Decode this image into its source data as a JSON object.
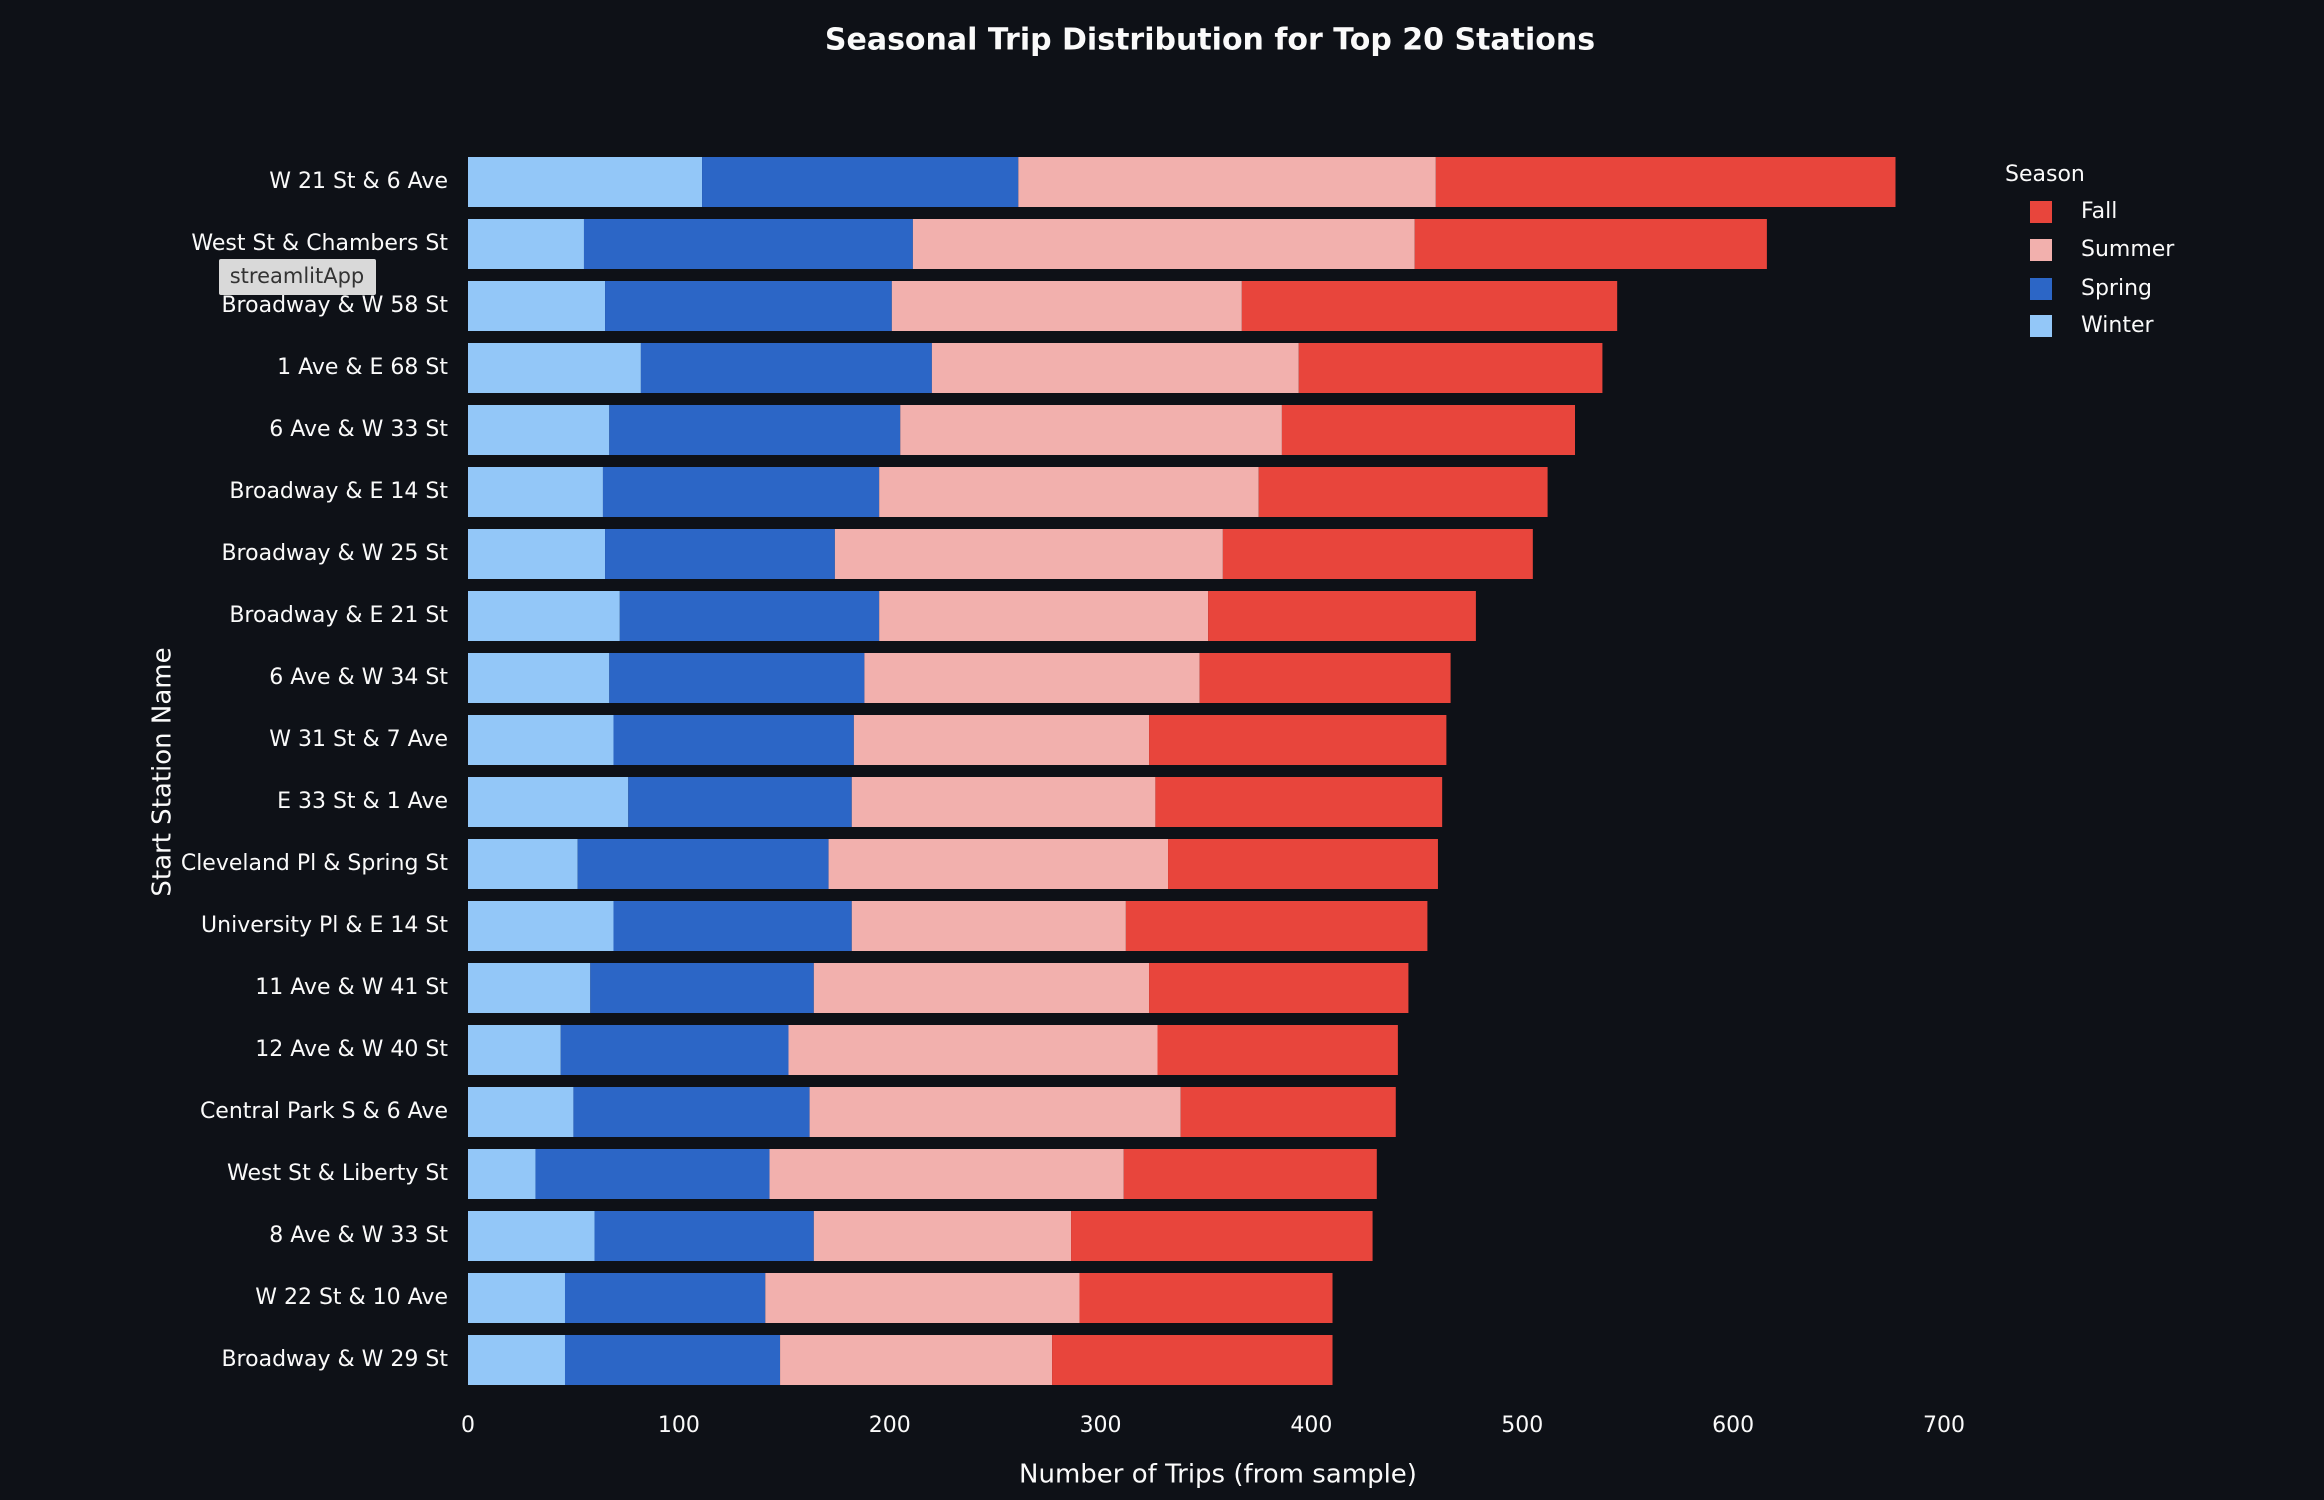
{
  "chart_data": {
    "type": "stacked_barh",
    "title": "Seasonal Trip Distribution for Top 20 Stations",
    "x_label": "Number of Trips (from sample)",
    "y_label": "Start Station Name",
    "legend_title": "Season",
    "legend_position": "top-right",
    "tooltip": "streamlitApp",
    "grid": false,
    "categories": [
      "W 21 St & 6 Ave",
      "West St & Chambers St",
      "Broadway & W 58 St",
      "1 Ave & E 68 St",
      "6 Ave & W 33 St",
      "Broadway & E 14 St",
      "Broadway & W 25 St",
      "Broadway & E 21 St",
      "6 Ave & W 34 St",
      "W 31 St & 7 Ave",
      "E 33 St & 1 Ave",
      "Cleveland Pl & Spring St",
      "University Pl & E 14 St",
      "11 Ave & W 41 St",
      "12 Ave & W 40 St",
      "Central Park S & 6 Ave",
      "West St & Liberty St",
      "8 Ave & W 33 St",
      "W 22 St & 10 Ave",
      "Broadway & W 29 St"
    ],
    "series": [
      {
        "name": "Winter",
        "color": "#93c7f8",
        "values": [
          111,
          55,
          65,
          82,
          67,
          64,
          65,
          72,
          67,
          69,
          76,
          52,
          69,
          58,
          44,
          50,
          32,
          60,
          46,
          46
        ]
      },
      {
        "name": "Spring",
        "color": "#2c66c6",
        "values": [
          150,
          156,
          136,
          138,
          138,
          131,
          109,
          123,
          121,
          114,
          106,
          119,
          113,
          106,
          108,
          112,
          111,
          104,
          95,
          102
        ]
      },
      {
        "name": "Summer",
        "color": "#f2b0ad",
        "values": [
          198,
          238,
          166,
          174,
          181,
          180,
          184,
          156,
          159,
          140,
          144,
          161,
          130,
          159,
          175,
          176,
          168,
          122,
          149,
          129
        ]
      },
      {
        "name": "Fall",
        "color": "#e8453c",
        "values": [
          218,
          167,
          178,
          144,
          139,
          137,
          147,
          127,
          119,
          141,
          136,
          128,
          143,
          123,
          114,
          102,
          120,
          143,
          120,
          133
        ]
      }
    ],
    "xlim": [
      0,
      700
    ],
    "xticks": [
      0,
      100,
      200,
      300,
      400,
      500,
      600,
      700
    ]
  }
}
